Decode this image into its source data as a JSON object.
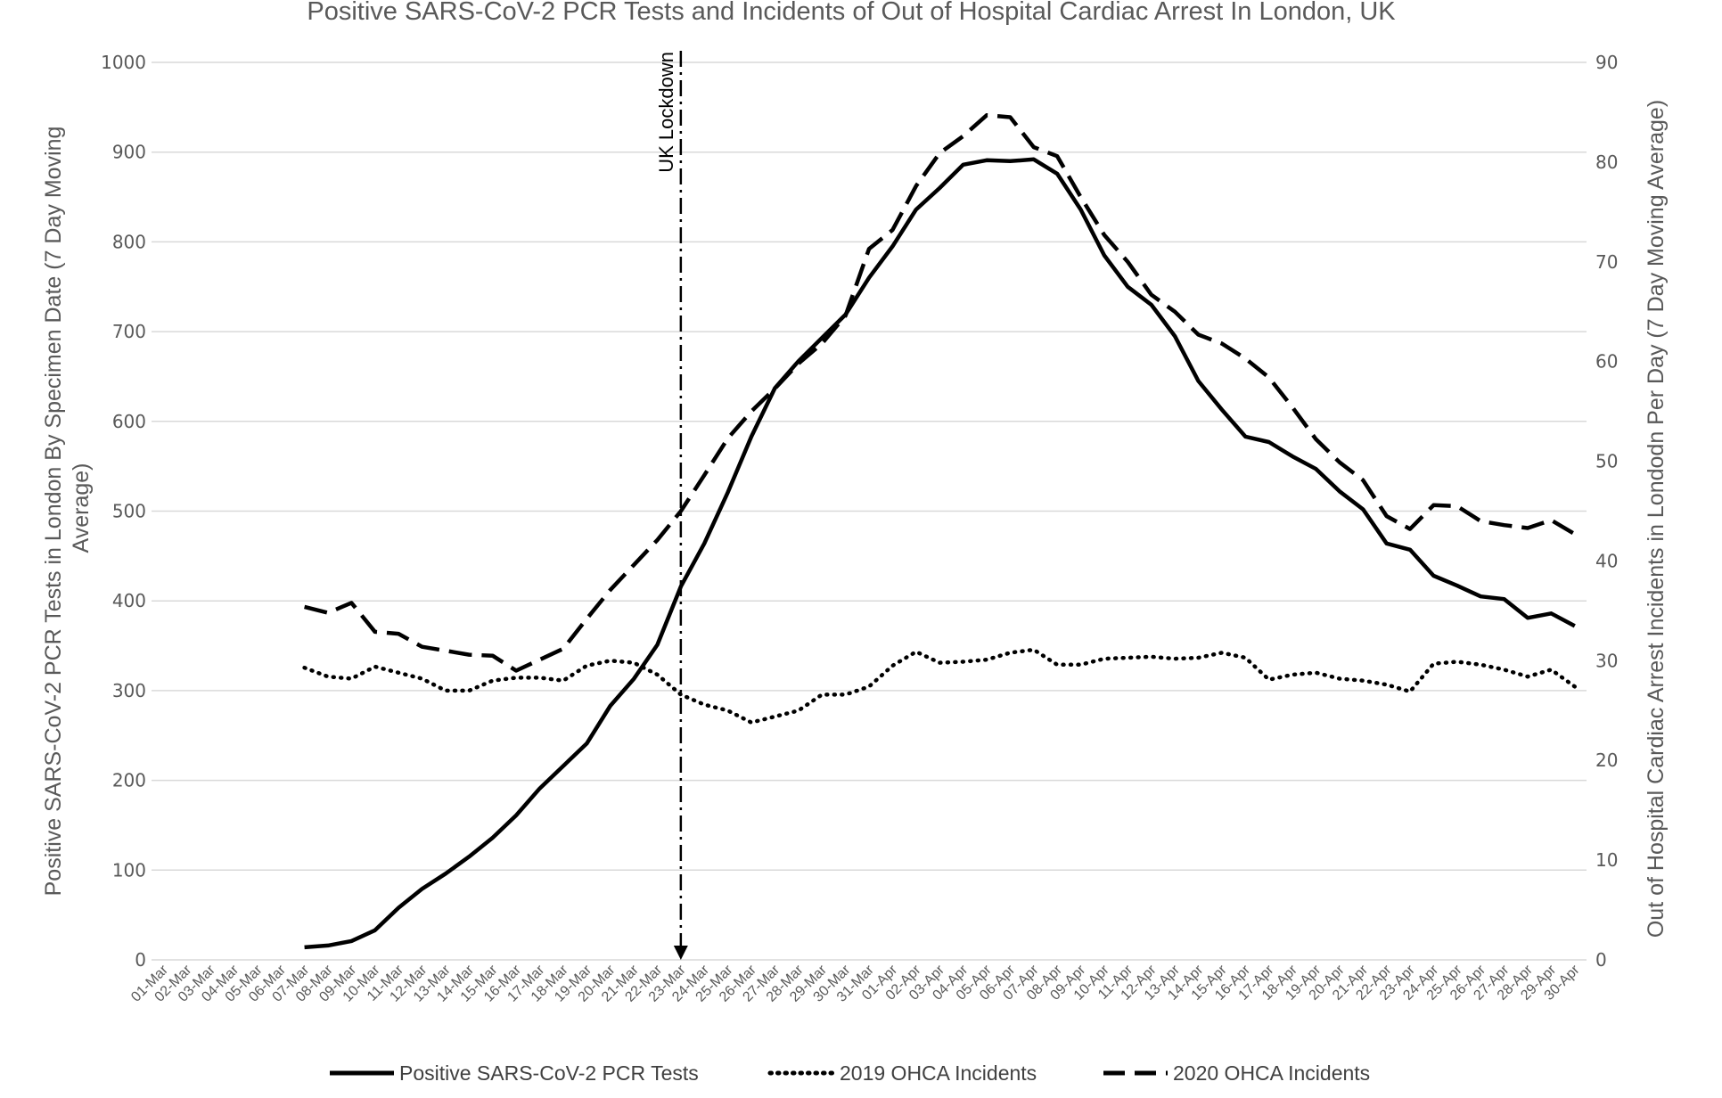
{
  "chart_data": {
    "type": "line",
    "title": "Positive SARS-CoV-2 PCR Tests and Incidents of Out of Hospital Cardiac Arrest In London, UK",
    "ylabel_left_lines": [
      "Positive SARS-CoV-2 PCR Tests in London By Specimen Date (7 Day Moving",
      "Average)"
    ],
    "ylabel_right": "Out of Hospital Cardiac Arrest Incidents in Londodn Per Day (7 Day Moving Average)",
    "ylim_left": [
      0,
      1000
    ],
    "ylim_right": [
      0,
      90
    ],
    "yticks_left": [
      "0",
      "100",
      "200",
      "300",
      "400",
      "500",
      "600",
      "700",
      "800",
      "900",
      "1000"
    ],
    "yticks_right": [
      "0",
      "10",
      "20",
      "30",
      "40",
      "50",
      "60",
      "70",
      "80",
      "90"
    ],
    "grid": true,
    "legend_position": "bottom",
    "categories": [
      "01-Mar",
      "02-Mar",
      "03-Mar",
      "04-Mar",
      "05-Mar",
      "06-Mar",
      "07-Mar",
      "08-Mar",
      "09-Mar",
      "10-Mar",
      "11-Mar",
      "12-Mar",
      "13-Mar",
      "14-Mar",
      "15-Mar",
      "16-Mar",
      "17-Mar",
      "18-Mar",
      "19-Mar",
      "20-Mar",
      "21-Mar",
      "22-Mar",
      "23-Mar",
      "24-Mar",
      "25-Mar",
      "26-Mar",
      "27-Mar",
      "28-Mar",
      "29-Mar",
      "30-Mar",
      "31-Mar",
      "01-Apr",
      "02-Apr",
      "03-Apr",
      "04-Apr",
      "05-Apr",
      "06-Apr",
      "07-Apr",
      "08-Apr",
      "09-Apr",
      "10-Apr",
      "11-Apr",
      "12-Apr",
      "13-Apr",
      "14-Apr",
      "15-Apr",
      "16-Apr",
      "17-Apr",
      "18-Apr",
      "19-Apr",
      "20-Apr",
      "21-Apr",
      "22-Apr",
      "23-Apr",
      "24-Apr",
      "25-Apr",
      "26-Apr",
      "27-Apr",
      "28-Apr",
      "29-Apr",
      "30-Apr"
    ],
    "series": [
      {
        "name": "Positive SARS-CoV-2 PCR Tests",
        "axis": "left",
        "style": "solid",
        "values": [
          null,
          null,
          null,
          null,
          null,
          null,
          14,
          16,
          21,
          33,
          58,
          79,
          96,
          115,
          136,
          161,
          191,
          216,
          241,
          283,
          313,
          351,
          416,
          464,
          521,
          583,
          637,
          667,
          693,
          719,
          760,
          795,
          836,
          860,
          886,
          891,
          890,
          892,
          876,
          836,
          785,
          750,
          730,
          695,
          645,
          613,
          583,
          577,
          561,
          547,
          522,
          502,
          464,
          457,
          428,
          417,
          405,
          402,
          381,
          386,
          372
        ]
      },
      {
        "name": "2019 OHCA Incidents",
        "axis": "right",
        "style": "dotted",
        "values": [
          null,
          null,
          null,
          null,
          null,
          null,
          29.3,
          28.4,
          28.2,
          29.4,
          28.8,
          28.2,
          27.0,
          27.0,
          28.0,
          28.3,
          28.3,
          28.0,
          29.5,
          30.0,
          29.8,
          28.6,
          26.6,
          25.6,
          25.0,
          23.8,
          24.4,
          25.0,
          26.6,
          26.6,
          27.4,
          29.5,
          30.9,
          29.8,
          29.9,
          30.1,
          30.8,
          31.1,
          29.6,
          29.6,
          30.2,
          30.3,
          30.4,
          30.2,
          30.3,
          30.8,
          30.3,
          28.1,
          28.6,
          28.8,
          28.2,
          28.0,
          27.6,
          26.9,
          29.7,
          29.9,
          29.6,
          29.1,
          28.4,
          29.1,
          27.4
        ]
      },
      {
        "name": "2020 OHCA Incidents",
        "axis": "right",
        "style": "dashed",
        "values": [
          null,
          null,
          null,
          null,
          null,
          null,
          35.4,
          34.8,
          35.8,
          32.9,
          32.7,
          31.4,
          31.0,
          30.6,
          30.5,
          29.0,
          30.1,
          31.2,
          34.2,
          37.1,
          39.6,
          42.1,
          45.0,
          48.6,
          52.3,
          55.0,
          57.3,
          59.8,
          61.8,
          64.6,
          71.3,
          73.2,
          77.6,
          80.9,
          82.6,
          84.7,
          84.5,
          81.5,
          80.6,
          76.5,
          72.7,
          70.0,
          66.7,
          65.0,
          62.7,
          61.8,
          60.3,
          58.4,
          55.4,
          52.2,
          49.9,
          48.1,
          44.5,
          43.2,
          45.6,
          45.5,
          44.0,
          43.6,
          43.3,
          44.1,
          42.7
        ]
      }
    ],
    "annotations": [
      {
        "text": "UK Lockdown",
        "x": "23-Mar",
        "style": "dash-dot vertical line with downward arrow"
      }
    ]
  }
}
